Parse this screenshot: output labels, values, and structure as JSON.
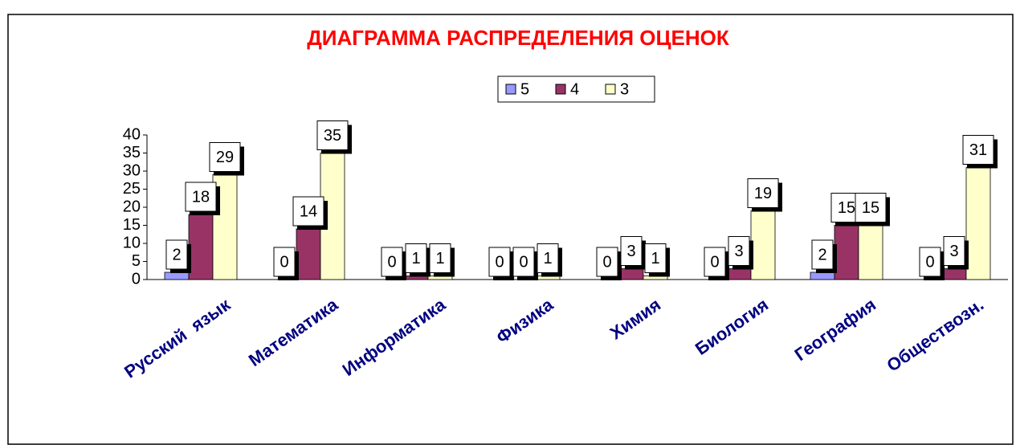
{
  "chart_data": {
    "type": "bar",
    "title": "ДИАГРАММА РАСПРЕДЕЛЕНИЯ ОЦЕНОК",
    "categories": [
      "Русский  язык",
      "Математика",
      "Информатика",
      "Физика",
      "Химия",
      "Биология",
      "География",
      "Обществозн."
    ],
    "series": [
      {
        "name": "5",
        "color": "#9999ff",
        "values": [
          2,
          0,
          0,
          0,
          0,
          0,
          2,
          0
        ]
      },
      {
        "name": "4",
        "color": "#993366",
        "values": [
          18,
          14,
          1,
          0,
          3,
          3,
          15,
          3
        ]
      },
      {
        "name": "3",
        "color": "#ffffcc",
        "values": [
          29,
          35,
          1,
          1,
          1,
          19,
          15,
          31
        ]
      }
    ],
    "ylim": [
      0,
      40
    ],
    "yticks": [
      0,
      5,
      10,
      15,
      20,
      25,
      30,
      35,
      40
    ],
    "legend": "top"
  }
}
